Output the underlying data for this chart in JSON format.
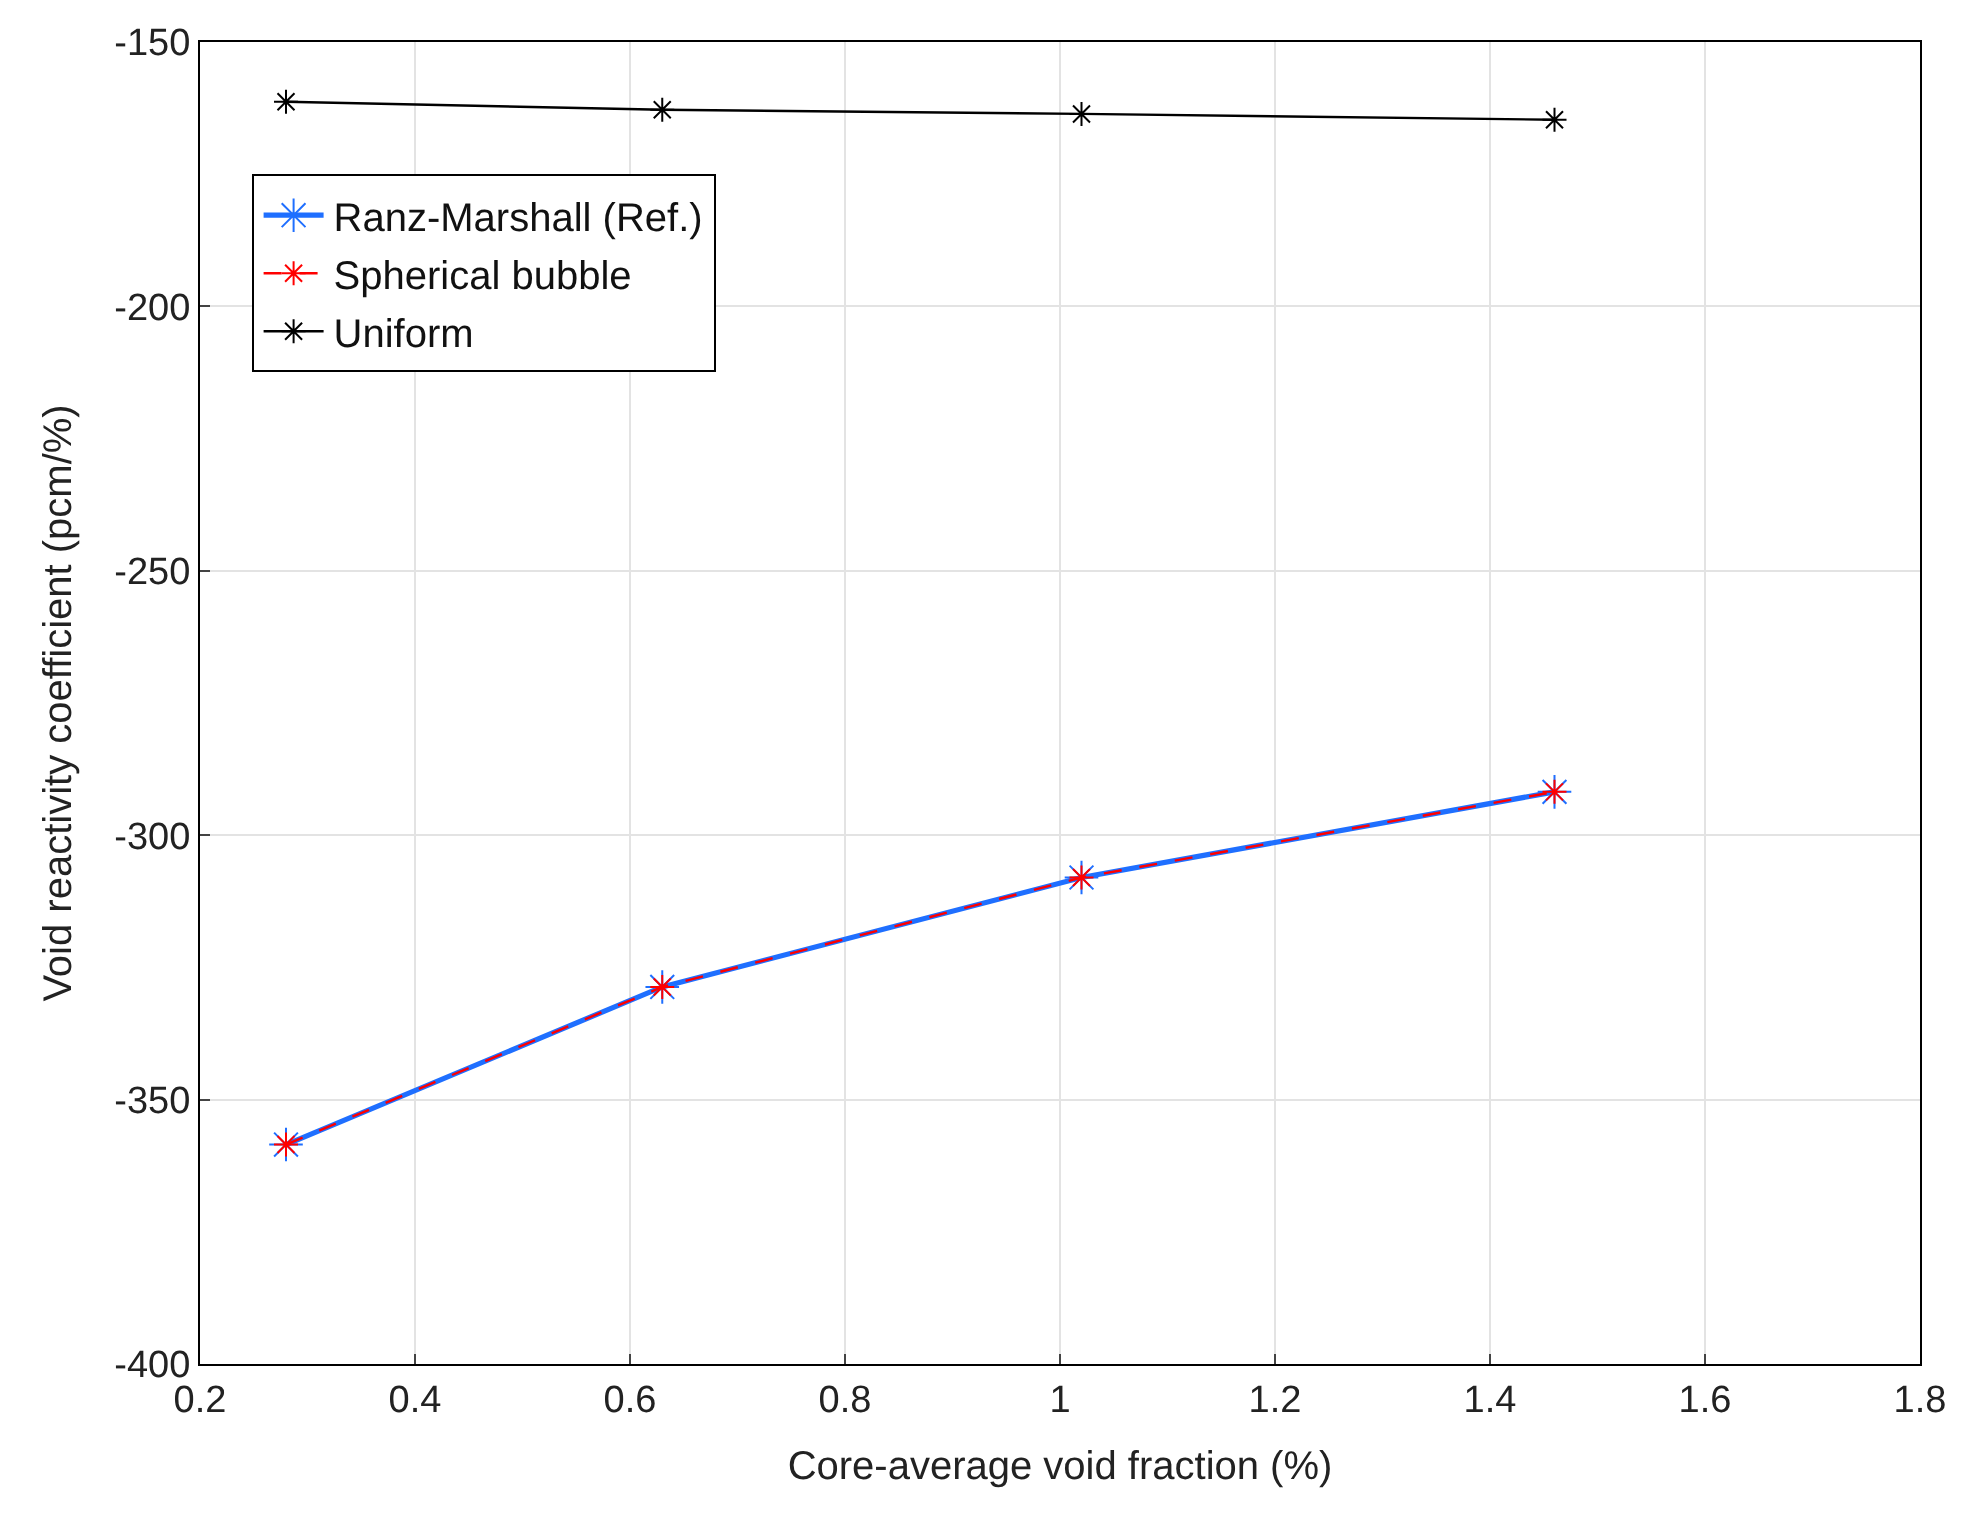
{
  "chart_data": {
    "type": "line",
    "xlabel": "Core-average void fraction (%)",
    "ylabel": "Void reactivity coefficient (pcm/%)",
    "x": [
      0.28,
      0.63,
      1.02,
      1.46
    ],
    "series": [
      {
        "name": "Ranz-Marshall (Ref.)",
        "color": "#1f6fff",
        "values": [
          -358.5,
          -328.7,
          -308.0,
          -291.8
        ],
        "line_style": "solid"
      },
      {
        "name": "Spherical bubble",
        "color": "#ff0000",
        "values": [
          -358.5,
          -328.7,
          -308.0,
          -291.8
        ],
        "line_style": "dashed"
      },
      {
        "name": "Uniform",
        "color": "#000000",
        "values": [
          -161.3,
          -162.8,
          -163.6,
          -164.7
        ],
        "line_style": "solid"
      }
    ],
    "xlim": [
      0.2,
      1.8
    ],
    "xticks": [
      0.2,
      0.4,
      0.6,
      0.8,
      1,
      1.2,
      1.4,
      1.6,
      1.8
    ],
    "ylim": [
      -400,
      -150
    ],
    "yticks": [
      -400,
      -350,
      -300,
      -250,
      -200,
      -150
    ],
    "grid": true,
    "legend": "top left",
    "marker": "cross"
  }
}
